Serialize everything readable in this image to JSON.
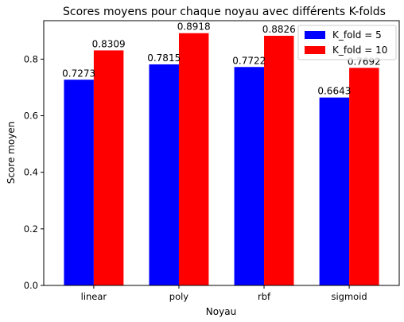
{
  "chart_data": {
    "type": "bar",
    "title": "Scores moyens pour chaque noyau avec différents K-folds",
    "xlabel": "Noyau",
    "ylabel": "Score moyen",
    "categories": [
      "linear",
      "poly",
      "rbf",
      "sigmoid"
    ],
    "series": [
      {
        "name": "K_fold = 5",
        "color": "#0000ff",
        "values": [
          0.7273,
          0.7815,
          0.7722,
          0.6643
        ],
        "labels": [
          "0.7273",
          "0.7815",
          "0.7722",
          "0.6643"
        ]
      },
      {
        "name": "K_fold = 10",
        "color": "#ff0000",
        "values": [
          0.8309,
          0.8918,
          0.8826,
          0.7692
        ],
        "labels": [
          "0.8309",
          "0.8918",
          "0.8826",
          "0.7692"
        ]
      }
    ],
    "ylim": [
      0,
      0.936
    ],
    "yticks": [
      0.0,
      0.2,
      0.4,
      0.6,
      0.8
    ],
    "ytick_labels": [
      "0.0",
      "0.2",
      "0.4",
      "0.6",
      "0.8"
    ],
    "legend_position": "top-right",
    "grid": false
  }
}
